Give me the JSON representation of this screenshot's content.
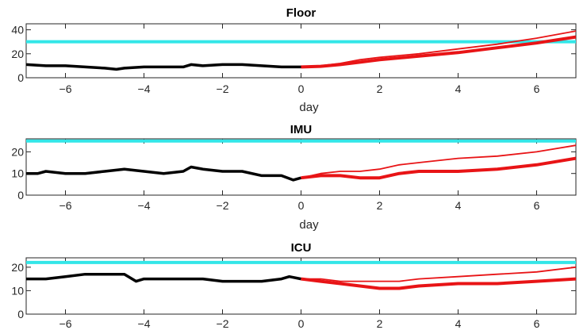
{
  "chart_data": [
    {
      "type": "line",
      "title": "Floor",
      "xlabel": "day",
      "xlim": [
        -7,
        7
      ],
      "ylim": [
        0,
        45
      ],
      "xticks": [
        -6,
        -4,
        -2,
        0,
        2,
        4,
        6
      ],
      "yticks": [
        0,
        20,
        40
      ],
      "threshold": 30,
      "historical": {
        "x": [
          -7,
          -6.5,
          -6,
          -5.5,
          -5,
          -4.7,
          -4.5,
          -4,
          -3.5,
          -3,
          -2.8,
          -2.5,
          -2,
          -1.5,
          -1,
          -0.5,
          0
        ],
        "y": [
          11,
          10,
          10,
          9,
          8,
          7,
          8,
          9,
          9,
          9,
          11,
          10,
          11,
          11,
          10,
          9,
          9
        ]
      },
      "forecast_upper": {
        "x": [
          0,
          0.5,
          1,
          1.5,
          2,
          3,
          4,
          5,
          6,
          7
        ],
        "y": [
          9,
          10,
          12,
          15,
          17,
          20,
          24,
          28,
          33,
          39
        ]
      },
      "forecast_mean": {
        "x": [
          0,
          0.5,
          1,
          1.5,
          2,
          3,
          4,
          5,
          6,
          7
        ],
        "y": [
          9,
          9.5,
          11,
          13,
          15,
          18,
          21,
          25,
          29,
          34
        ]
      }
    },
    {
      "type": "line",
      "title": "IMU",
      "xlabel": "day",
      "xlim": [
        -7,
        7
      ],
      "ylim": [
        0,
        26
      ],
      "xticks": [
        -6,
        -4,
        -2,
        0,
        2,
        4,
        6
      ],
      "yticks": [
        0,
        10,
        20
      ],
      "threshold": 25,
      "historical": {
        "x": [
          -7,
          -6.7,
          -6.5,
          -6,
          -5.5,
          -5,
          -4.5,
          -4,
          -3.5,
          -3,
          -2.8,
          -2.5,
          -2,
          -1.5,
          -1,
          -0.5,
          -0.2,
          0
        ],
        "y": [
          10,
          10,
          11,
          10,
          10,
          11,
          12,
          11,
          10,
          11,
          13,
          12,
          11,
          11,
          9,
          9,
          7,
          8
        ]
      },
      "forecast_upper": {
        "x": [
          0,
          0.5,
          1,
          1.5,
          2,
          2.5,
          3,
          4,
          5,
          6,
          7
        ],
        "y": [
          8,
          10,
          11,
          11,
          12,
          14,
          15,
          17,
          18,
          20,
          23
        ]
      },
      "forecast_mean": {
        "x": [
          0,
          0.5,
          1,
          1.5,
          2,
          2.5,
          3,
          4,
          5,
          6,
          7
        ],
        "y": [
          8,
          9,
          9,
          8,
          8,
          10,
          11,
          11,
          12,
          14,
          17
        ]
      }
    },
    {
      "type": "line",
      "title": "ICU",
      "xlabel": "",
      "xlim": [
        -7,
        7
      ],
      "ylim": [
        0,
        24
      ],
      "xticks": [
        -6,
        -4,
        -2,
        0,
        2,
        4,
        6
      ],
      "yticks": [
        0,
        10,
        20
      ],
      "threshold": 22,
      "historical": {
        "x": [
          -7,
          -6.5,
          -6,
          -5.5,
          -5,
          -4.5,
          -4.2,
          -4,
          -3.5,
          -3,
          -2.5,
          -2,
          -1.5,
          -1,
          -0.5,
          -0.3,
          0
        ],
        "y": [
          15,
          15,
          16,
          17,
          17,
          17,
          14,
          15,
          15,
          15,
          15,
          14,
          14,
          14,
          15,
          16,
          15
        ]
      },
      "forecast_upper": {
        "x": [
          0,
          0.5,
          1,
          1.5,
          2,
          2.5,
          3,
          4,
          5,
          6,
          7
        ],
        "y": [
          15,
          15,
          14,
          14,
          14,
          14,
          15,
          16,
          17,
          18,
          20
        ]
      },
      "forecast_mean": {
        "x": [
          0,
          0.5,
          1,
          1.5,
          2,
          2.5,
          3,
          4,
          5,
          6,
          7
        ],
        "y": [
          15,
          14,
          13,
          12,
          11,
          11,
          12,
          13,
          13,
          14,
          15
        ]
      }
    }
  ],
  "colors": {
    "historical": "#000000",
    "forecast": "#e81416",
    "threshold": "#33e6e8",
    "axis": "#262626"
  }
}
